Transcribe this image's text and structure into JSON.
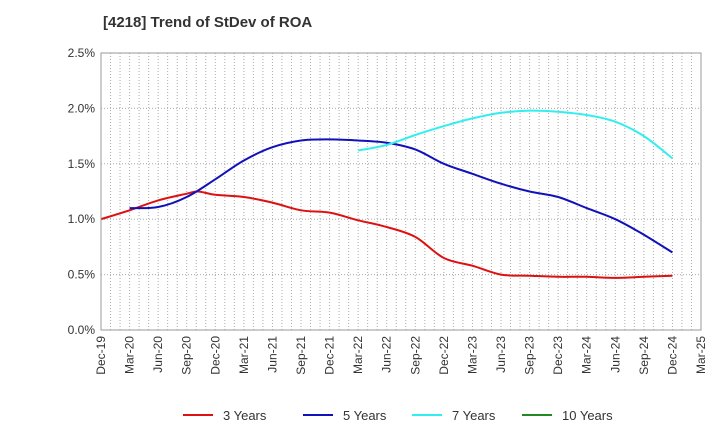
{
  "chart_data": {
    "type": "line",
    "title": "[4218]  Trend of StDev of ROA",
    "xlabel": "",
    "ylabel": "",
    "ylim": [
      0,
      2.5
    ],
    "y_ticks": [
      0,
      0.5,
      1.0,
      1.5,
      2.0,
      2.5
    ],
    "y_tick_labels": [
      "0.0%",
      "0.5%",
      "1.0%",
      "1.5%",
      "2.0%",
      "2.5%"
    ],
    "x_tick_labels": [
      "Dec-19",
      "Mar-20",
      "Jun-20",
      "Sep-20",
      "Dec-20",
      "Mar-21",
      "Jun-21",
      "Sep-21",
      "Dec-21",
      "Mar-22",
      "Jun-22",
      "Sep-22",
      "Dec-22",
      "Mar-23",
      "Jun-23",
      "Sep-23",
      "Dec-23",
      "Mar-24",
      "Jun-24",
      "Sep-24",
      "Dec-24",
      "Mar-25"
    ],
    "grid": true,
    "legend_position": "bottom",
    "series": [
      {
        "name": "3 Years",
        "color": "#dd1111",
        "points": [
          [
            0,
            1.0
          ],
          [
            1,
            1.08
          ],
          [
            2,
            1.17
          ],
          [
            3,
            1.23
          ],
          [
            3.4,
            1.25
          ],
          [
            4,
            1.22
          ],
          [
            5,
            1.2
          ],
          [
            6,
            1.15
          ],
          [
            7,
            1.08
          ],
          [
            8,
            1.06
          ],
          [
            9,
            0.99
          ],
          [
            10,
            0.93
          ],
          [
            11,
            0.84
          ],
          [
            12,
            0.65
          ],
          [
            13,
            0.58
          ],
          [
            14,
            0.5
          ],
          [
            15,
            0.49
          ],
          [
            16,
            0.48
          ],
          [
            17,
            0.48
          ],
          [
            18,
            0.47
          ],
          [
            19,
            0.48
          ],
          [
            20,
            0.49
          ]
        ]
      },
      {
        "name": "5 Years",
        "color": "#1111bb",
        "points": [
          [
            1,
            1.1
          ],
          [
            2,
            1.11
          ],
          [
            3,
            1.2
          ],
          [
            4,
            1.36
          ],
          [
            5,
            1.53
          ],
          [
            6,
            1.65
          ],
          [
            7,
            1.71
          ],
          [
            8,
            1.72
          ],
          [
            9,
            1.71
          ],
          [
            10,
            1.69
          ],
          [
            11,
            1.63
          ],
          [
            12,
            1.5
          ],
          [
            13,
            1.41
          ],
          [
            14,
            1.32
          ],
          [
            15,
            1.25
          ],
          [
            16,
            1.2
          ],
          [
            17,
            1.1
          ],
          [
            18,
            1.0
          ],
          [
            19,
            0.86
          ],
          [
            20,
            0.7
          ]
        ]
      },
      {
        "name": "7 Years",
        "color": "#33eeee",
        "points": [
          [
            9,
            1.62
          ],
          [
            10,
            1.67
          ],
          [
            11,
            1.76
          ],
          [
            12,
            1.84
          ],
          [
            13,
            1.91
          ],
          [
            14,
            1.96
          ],
          [
            15,
            1.98
          ],
          [
            16,
            1.97
          ],
          [
            17,
            1.94
          ],
          [
            18,
            1.88
          ],
          [
            19,
            1.75
          ],
          [
            20,
            1.55
          ]
        ]
      },
      {
        "name": "10 Years",
        "color": "#228822",
        "points": []
      }
    ]
  }
}
